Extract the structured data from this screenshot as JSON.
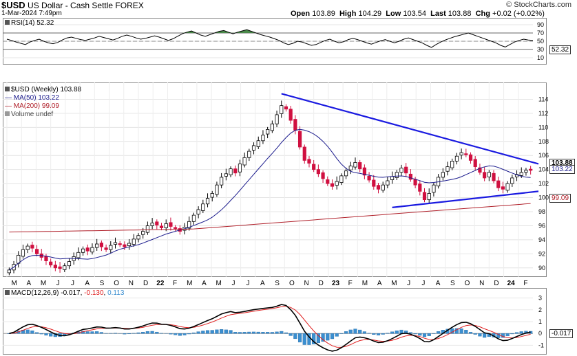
{
  "header": {
    "symbol": "$USD",
    "name": "US Dollar - Cash Settle",
    "exchange": "FOREX",
    "date": "1-Mar-2024 7:49pm",
    "brand": "© StockCharts.com",
    "open_label": "Open",
    "open": "103.89",
    "high_label": "High",
    "high": "104.29",
    "low_label": "Low",
    "low": "103.54",
    "last_label": "Last",
    "last": "103.88",
    "chg_label": "Chg",
    "chg": "+0.02 (+0.02%)"
  },
  "rsi": {
    "label": "RSI(14) 52.32",
    "last_tag": "52.32",
    "ticks": [
      90,
      70,
      50,
      30,
      10
    ],
    "levels": [
      70,
      30
    ],
    "values": [
      55,
      52,
      48,
      45,
      42,
      48,
      52,
      55,
      50,
      46,
      44,
      47,
      53,
      58,
      60,
      57,
      54,
      52,
      55,
      58,
      62,
      59,
      56,
      53,
      57,
      62,
      65,
      62,
      58,
      55,
      57,
      60,
      63,
      60,
      56,
      52,
      56,
      62,
      68,
      72,
      75,
      70,
      65,
      62,
      66,
      70,
      74,
      76,
      72,
      68,
      72,
      75,
      78,
      74,
      70,
      66,
      63,
      60,
      56,
      52,
      46,
      42,
      45,
      50,
      48,
      44,
      40,
      42,
      47,
      52,
      55,
      50,
      46,
      49,
      54,
      57,
      54,
      50,
      46,
      43,
      47,
      51,
      54,
      50,
      46,
      50,
      55,
      58,
      54,
      50,
      46,
      40,
      35,
      42,
      48,
      53,
      57,
      61,
      64,
      67,
      70,
      66,
      62,
      58,
      54,
      50,
      46,
      40,
      36,
      42,
      48,
      52,
      55,
      53,
      52
    ]
  },
  "price": {
    "legend_title": "$USD (Weekly) 103.88",
    "legend_ma50": "MA(50) 103.22",
    "legend_ma200": "MA(200) 99.09",
    "legend_volume": "Volume undef",
    "tag_last": "103.88",
    "tag_ma50": "103.22",
    "tag_ma200": "99.09",
    "ticks": [
      114,
      112,
      110,
      108,
      106,
      104,
      102,
      100,
      98,
      96,
      94,
      92,
      90
    ],
    "x_labels": [
      "M",
      "A",
      "M",
      "J",
      "J",
      "A",
      "S",
      "O",
      "N",
      "D",
      "22",
      "F",
      "M",
      "A",
      "M",
      "J",
      "J",
      "A",
      "S",
      "O",
      "N",
      "D",
      "23",
      "F",
      "M",
      "A",
      "M",
      "J",
      "J",
      "A",
      "S",
      "O",
      "N",
      "D",
      "24",
      "F"
    ],
    "colors": {
      "up": "#000000",
      "down": "#d01040",
      "ma50": "#1a1a8c",
      "ma200": "#b0202a",
      "trend": "#1a1ae0"
    }
  },
  "macd": {
    "label_prefix": "MACD(12,26,9)",
    "label_macd": "-0.017",
    "label_signal": "-0.130",
    "label_hist": "0.113",
    "last_tag": "-0.017",
    "ticks": [
      3,
      2,
      1,
      0,
      -1
    ],
    "colors": {
      "macd": "#000000",
      "signal": "#e02020",
      "hist": "#3b8fd0"
    }
  },
  "chart_data": [
    {
      "type": "line",
      "title": "RSI(14) 52.32",
      "ylim": [
        0,
        100
      ],
      "series": [
        {
          "name": "RSI(14)",
          "last": 52.32
        }
      ]
    },
    {
      "type": "candlestick",
      "title": "$USD (Weekly) 103.88",
      "ylim": [
        89,
        116
      ],
      "closes": [
        89.7,
        90.5,
        91.8,
        92.6,
        93.1,
        92.8,
        92.0,
        91.5,
        91.0,
        90.4,
        90.0,
        89.9,
        90.3,
        90.9,
        91.6,
        92.2,
        92.7,
        92.4,
        92.9,
        93.4,
        93.0,
        92.6,
        93.2,
        93.6,
        93.3,
        93.0,
        93.5,
        94.1,
        94.6,
        95.2,
        96.0,
        96.4,
        96.1,
        95.7,
        96.3,
        95.9,
        95.6,
        95.2,
        95.8,
        96.6,
        97.5,
        98.3,
        99.1,
        99.9,
        100.6,
        101.8,
        102.9,
        103.4,
        104.1,
        103.5,
        104.8,
        105.7,
        106.6,
        107.4,
        108.1,
        108.9,
        109.7,
        110.5,
        111.8,
        113.1,
        112.6,
        111.0,
        109.6,
        107.2,
        105.3,
        104.9,
        104.0,
        103.4,
        102.7,
        102.0,
        101.6,
        102.3,
        103.1,
        103.8,
        104.5,
        105.0,
        104.1,
        103.2,
        102.5,
        101.6,
        101.2,
        101.8,
        102.4,
        103.0,
        103.6,
        104.2,
        103.5,
        102.6,
        101.8,
        100.9,
        99.7,
        100.6,
        101.8,
        102.9,
        103.6,
        104.4,
        105.2,
        105.9,
        106.4,
        106.1,
        105.3,
        104.4,
        103.6,
        102.8,
        103.6,
        102.4,
        101.4,
        101.2,
        102.0,
        102.8,
        103.3,
        103.6,
        103.9,
        103.88
      ],
      "ma50": {
        "name": "MA(50)",
        "last": 103.22
      },
      "ma200": {
        "name": "MA(200)",
        "last": 99.09
      },
      "trendlines": [
        {
          "from": [
            2022.75,
            114.8
          ],
          "to": [
            2024.17,
            104.8
          ]
        },
        {
          "from": [
            2023.35,
            98.6
          ],
          "to": [
            2024.17,
            100.9
          ]
        }
      ]
    },
    {
      "type": "line",
      "title": "MACD(12,26,9)",
      "ylim": [
        -1.5,
        3.5
      ],
      "series": [
        {
          "name": "MACD",
          "last": -0.017
        },
        {
          "name": "Signal",
          "last": -0.13
        },
        {
          "name": "Histogram",
          "last": 0.113
        }
      ]
    }
  ]
}
